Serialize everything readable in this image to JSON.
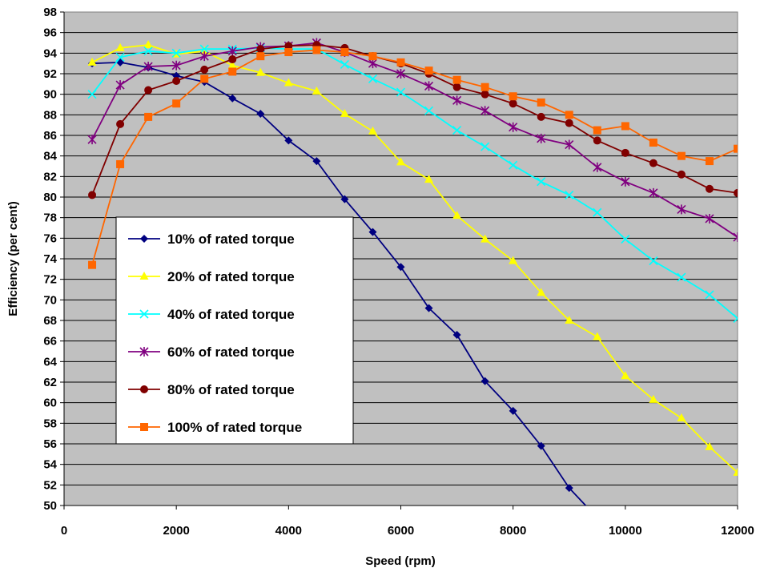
{
  "chart_data": {
    "type": "line",
    "xlabel": "Speed (rpm)",
    "ylabel": "Efficiency (per cent)",
    "xlim": [
      0,
      12000
    ],
    "ylim": [
      50,
      98
    ],
    "xticks": [
      0,
      2000,
      4000,
      6000,
      8000,
      10000,
      12000
    ],
    "yticks": [
      50,
      52,
      54,
      56,
      58,
      60,
      62,
      64,
      66,
      68,
      70,
      72,
      74,
      76,
      78,
      80,
      82,
      84,
      86,
      88,
      90,
      92,
      94,
      96,
      98
    ],
    "grid": "horizontal",
    "plot_background": "#c0c0c0",
    "legend_position": "center-left inside plot",
    "x": [
      500,
      1000,
      1500,
      2000,
      2500,
      3000,
      3500,
      4000,
      4500,
      5000,
      5500,
      6000,
      6500,
      7000,
      7500,
      8000,
      8500,
      9000,
      9500,
      10000,
      10500,
      11000,
      11500,
      12000
    ],
    "series": [
      {
        "name": "10% of rated torque",
        "color": "#000080",
        "marker": "diamond",
        "values": [
          93.0,
          93.1,
          92.6,
          91.8,
          91.2,
          89.6,
          88.1,
          85.5,
          83.5,
          79.8,
          76.6,
          73.2,
          69.2,
          66.6,
          62.1,
          59.2,
          55.8,
          51.7,
          48.8,
          null,
          null,
          null,
          null,
          null
        ]
      },
      {
        "name": "20% of rated torque",
        "color": "#ffff00",
        "marker": "triangle",
        "values": [
          93.1,
          94.5,
          94.8,
          93.9,
          94.2,
          92.8,
          92.1,
          91.1,
          90.3,
          88.1,
          86.4,
          83.4,
          81.7,
          78.2,
          75.9,
          73.8,
          70.7,
          68.0,
          66.4,
          62.6,
          60.3,
          58.5,
          55.7,
          53.2
        ]
      },
      {
        "name": "40% of rated torque",
        "color": "#00ffff",
        "marker": "x",
        "values": [
          90.0,
          93.6,
          94.2,
          94.0,
          94.4,
          94.4,
          94.5,
          94.4,
          94.4,
          92.9,
          91.5,
          90.2,
          88.4,
          86.5,
          84.9,
          83.1,
          81.5,
          80.2,
          78.5,
          75.9,
          73.8,
          72.2,
          70.5,
          68.2
        ]
      },
      {
        "name": "60% of rated torque",
        "color": "#800080",
        "marker": "asterisk",
        "values": [
          85.6,
          90.9,
          92.7,
          92.8,
          93.7,
          94.2,
          94.6,
          94.7,
          95.0,
          94.1,
          93.0,
          92.0,
          90.8,
          89.4,
          88.4,
          86.8,
          85.7,
          85.1,
          82.9,
          81.5,
          80.4,
          78.8,
          77.9,
          76.1
        ]
      },
      {
        "name": "80% of rated torque",
        "color": "#800000",
        "marker": "circle",
        "values": [
          80.2,
          87.1,
          90.4,
          91.3,
          92.4,
          93.4,
          94.4,
          94.7,
          94.8,
          94.5,
          93.7,
          93.0,
          92.0,
          90.7,
          90.0,
          89.1,
          87.8,
          87.2,
          85.5,
          84.3,
          83.3,
          82.2,
          80.8,
          80.4
        ]
      },
      {
        "name": "100% of rated torque",
        "color": "#ff6600",
        "marker": "square",
        "values": [
          73.4,
          83.2,
          87.8,
          89.1,
          91.5,
          92.2,
          93.7,
          94.1,
          94.3,
          94.1,
          93.7,
          93.1,
          92.3,
          91.4,
          90.7,
          89.8,
          89.2,
          88.0,
          86.5,
          86.9,
          85.3,
          84.0,
          83.5,
          84.7
        ]
      }
    ]
  }
}
